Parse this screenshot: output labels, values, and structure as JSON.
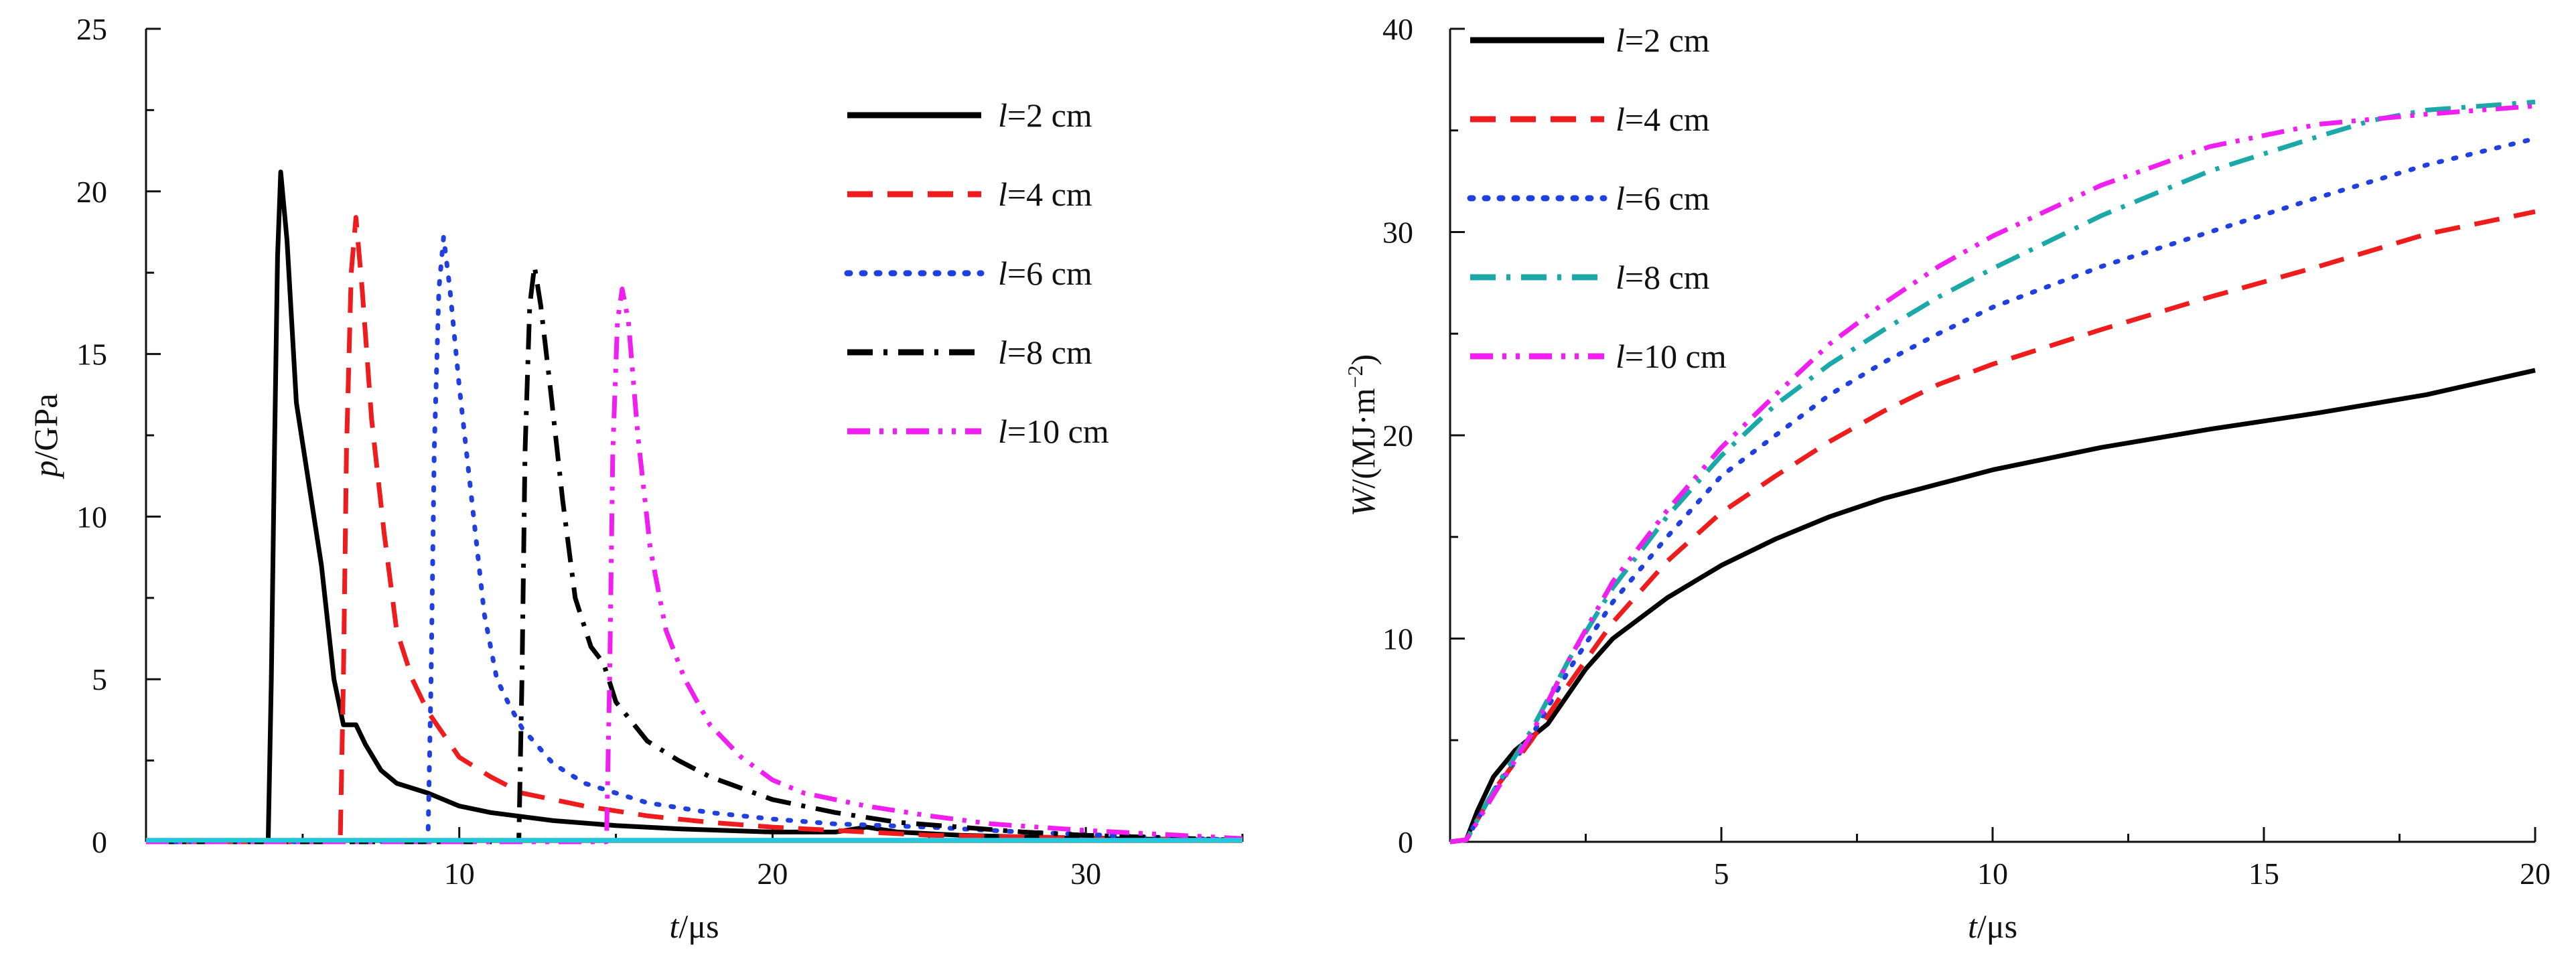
{
  "chart_data": [
    {
      "type": "line",
      "xlabel": {
        "var": "t",
        "unit": "/μs"
      },
      "ylabel": {
        "var": "p",
        "unit": "/GPa"
      },
      "xlim": [
        0,
        35
      ],
      "ylim": [
        0,
        25
      ],
      "x_ticks": [
        "10",
        "20",
        "30"
      ],
      "y_ticks": [
        "0",
        "5",
        "10",
        "15",
        "20",
        "25"
      ],
      "legend_position": "top-right",
      "series": [
        {
          "name": "l=2 cm",
          "label_var": "l",
          "label_rest": "=2 cm",
          "color": "#000000",
          "dash": "solid",
          "points": [
            [
              0,
              0
            ],
            [
              3.9,
              0
            ],
            [
              4.0,
              5
            ],
            [
              4.1,
              12
            ],
            [
              4.2,
              18
            ],
            [
              4.3,
              20.6
            ],
            [
              4.5,
              18.5
            ],
            [
              4.8,
              13.5
            ],
            [
              5.2,
              11
            ],
            [
              5.6,
              8.5
            ],
            [
              6.0,
              5
            ],
            [
              6.3,
              3.6
            ],
            [
              6.7,
              3.6
            ],
            [
              7.0,
              3.0
            ],
            [
              7.5,
              2.2
            ],
            [
              8.0,
              1.8
            ],
            [
              9.0,
              1.5
            ],
            [
              10,
              1.1
            ],
            [
              11,
              0.9
            ],
            [
              13,
              0.65
            ],
            [
              15,
              0.5
            ],
            [
              17,
              0.4
            ],
            [
              20,
              0.3
            ],
            [
              22,
              0.3
            ],
            [
              23,
              0.45
            ],
            [
              24,
              0.3
            ],
            [
              26,
              0.2
            ],
            [
              30,
              0.1
            ],
            [
              35,
              0.05
            ]
          ]
        },
        {
          "name": "l=4 cm",
          "label_var": "l",
          "label_rest": "=4 cm",
          "color": "#ee1c1c",
          "dash": "long",
          "points": [
            [
              0,
              0
            ],
            [
              6.2,
              0
            ],
            [
              6.3,
              5
            ],
            [
              6.4,
              12
            ],
            [
              6.55,
              17.5
            ],
            [
              6.7,
              19.2
            ],
            [
              6.9,
              17
            ],
            [
              7.2,
              13
            ],
            [
              7.6,
              9.5
            ],
            [
              8.0,
              6.5
            ],
            [
              8.5,
              5
            ],
            [
              9.0,
              4
            ],
            [
              9.5,
              3.3
            ],
            [
              10,
              2.6
            ],
            [
              11,
              2.0
            ],
            [
              12,
              1.5
            ],
            [
              14,
              1.1
            ],
            [
              16,
              0.8
            ],
            [
              18,
              0.6
            ],
            [
              20,
              0.45
            ],
            [
              22,
              0.35
            ],
            [
              25,
              0.2
            ],
            [
              28,
              0.15
            ],
            [
              35,
              0.05
            ]
          ]
        },
        {
          "name": "l=6 cm",
          "label_var": "l",
          "label_rest": "=6 cm",
          "color": "#1f3fe0",
          "dash": "dot",
          "points": [
            [
              0,
              0
            ],
            [
              9.0,
              0
            ],
            [
              9.1,
              5
            ],
            [
              9.2,
              12
            ],
            [
              9.35,
              17
            ],
            [
              9.5,
              18.6
            ],
            [
              9.7,
              17
            ],
            [
              10,
              14
            ],
            [
              10.4,
              10.5
            ],
            [
              10.8,
              7
            ],
            [
              11.2,
              5
            ],
            [
              11.6,
              4.2
            ],
            [
              12,
              3.5
            ],
            [
              13,
              2.4
            ],
            [
              14,
              1.8
            ],
            [
              16,
              1.2
            ],
            [
              18,
              0.9
            ],
            [
              20,
              0.7
            ],
            [
              22,
              0.55
            ],
            [
              25,
              0.45
            ],
            [
              28,
              0.3
            ],
            [
              32,
              0.15
            ],
            [
              35,
              0.05
            ]
          ]
        },
        {
          "name": "l=8 cm",
          "label_var": "l",
          "label_rest": "=8 cm",
          "color": "#000000",
          "dash": "dashdot",
          "points": [
            [
              0,
              0
            ],
            [
              11.9,
              0
            ],
            [
              12.0,
              5
            ],
            [
              12.1,
              12
            ],
            [
              12.25,
              16.5
            ],
            [
              12.4,
              17.7
            ],
            [
              12.6,
              16.5
            ],
            [
              12.9,
              14
            ],
            [
              13.3,
              10.5
            ],
            [
              13.7,
              7.5
            ],
            [
              14.2,
              6
            ],
            [
              14.6,
              5.5
            ],
            [
              15.0,
              4.3
            ],
            [
              16,
              3.1
            ],
            [
              17,
              2.5
            ],
            [
              18,
              2.0
            ],
            [
              20,
              1.3
            ],
            [
              22,
              0.9
            ],
            [
              24,
              0.6
            ],
            [
              26,
              0.45
            ],
            [
              28,
              0.3
            ],
            [
              30,
              0.2
            ],
            [
              35,
              0.05
            ]
          ]
        },
        {
          "name": "l=10 cm",
          "label_var": "l",
          "label_rest": "=10 cm",
          "color": "#f01ef0",
          "dash": "dashdotdot",
          "points": [
            [
              0,
              0
            ],
            [
              14.7,
              0
            ],
            [
              14.8,
              5
            ],
            [
              14.9,
              12
            ],
            [
              15.05,
              16
            ],
            [
              15.2,
              17.0
            ],
            [
              15.4,
              16
            ],
            [
              15.7,
              12.5
            ],
            [
              16.1,
              9
            ],
            [
              16.6,
              6.5
            ],
            [
              17.2,
              5
            ],
            [
              18,
              3.6
            ],
            [
              19,
              2.6
            ],
            [
              20,
              1.9
            ],
            [
              21,
              1.5
            ],
            [
              23,
              1.1
            ],
            [
              25,
              0.8
            ],
            [
              27,
              0.55
            ],
            [
              30,
              0.35
            ],
            [
              33,
              0.2
            ],
            [
              35,
              0.1
            ]
          ]
        },
        {
          "name": "",
          "color": "#22c8dc",
          "dash": "solid",
          "points": [
            [
              0,
              0.05
            ],
            [
              35,
              0.05
            ]
          ]
        }
      ]
    },
    {
      "type": "line",
      "xlabel": {
        "var": "t",
        "unit": "/μs"
      },
      "ylabel": {
        "var": "W",
        "unit": "/(MJ·m",
        "sup": "−2",
        "close": ")"
      },
      "xlim": [
        0,
        20
      ],
      "ylim": [
        0,
        40
      ],
      "x_ticks": [
        "5",
        "10",
        "15",
        "20"
      ],
      "y_ticks": [
        "0",
        "10",
        "20",
        "30",
        "40"
      ],
      "legend_position": "top-left",
      "series": [
        {
          "name": "l=2 cm",
          "label_var": "l",
          "label_rest": "=2 cm",
          "color": "#000000",
          "dash": "solid",
          "points": [
            [
              0,
              0
            ],
            [
              0.3,
              0.1
            ],
            [
              0.5,
              1.5
            ],
            [
              0.8,
              3.2
            ],
            [
              1.2,
              4.5
            ],
            [
              1.8,
              5.8
            ],
            [
              2.5,
              8.5
            ],
            [
              3,
              10
            ],
            [
              4,
              12
            ],
            [
              5,
              13.6
            ],
            [
              6,
              14.9
            ],
            [
              7,
              16
            ],
            [
              8,
              16.9
            ],
            [
              9,
              17.6
            ],
            [
              10,
              18.3
            ],
            [
              12,
              19.4
            ],
            [
              14,
              20.3
            ],
            [
              16,
              21.1
            ],
            [
              18,
              22.0
            ],
            [
              20,
              23.2
            ]
          ]
        },
        {
          "name": "l=4 cm",
          "label_var": "l",
          "label_rest": "=4 cm",
          "color": "#ee1c1c",
          "dash": "long",
          "points": [
            [
              0,
              0
            ],
            [
              0.3,
              0.1
            ],
            [
              0.8,
              2.5
            ],
            [
              1.5,
              5
            ],
            [
              2.2,
              7.8
            ],
            [
              3,
              10.8
            ],
            [
              4,
              13.8
            ],
            [
              5,
              16.2
            ],
            [
              6,
              18
            ],
            [
              7,
              19.7
            ],
            [
              8,
              21.2
            ],
            [
              9,
              22.5
            ],
            [
              10,
              23.5
            ],
            [
              12,
              25.2
            ],
            [
              14,
              26.8
            ],
            [
              16,
              28.3
            ],
            [
              18,
              29.9
            ],
            [
              20,
              31
            ]
          ]
        },
        {
          "name": "l=6 cm",
          "label_var": "l",
          "label_rest": "=6 cm",
          "color": "#1f3fe0",
          "dash": "dot",
          "points": [
            [
              0,
              0
            ],
            [
              0.3,
              0.1
            ],
            [
              0.8,
              2.5
            ],
            [
              1.5,
              5.2
            ],
            [
              2.2,
              8.5
            ],
            [
              3,
              11.8
            ],
            [
              4,
              15
            ],
            [
              5,
              18
            ],
            [
              6,
              20
            ],
            [
              7,
              22
            ],
            [
              8,
              23.6
            ],
            [
              9,
              25
            ],
            [
              10,
              26.3
            ],
            [
              12,
              28.3
            ],
            [
              14,
              30
            ],
            [
              16,
              31.7
            ],
            [
              18,
              33.3
            ],
            [
              20,
              34.6
            ]
          ]
        },
        {
          "name": "l=8 cm",
          "label_var": "l",
          "label_rest": "=8 cm",
          "color": "#1aa8a8",
          "dash": "dashdot",
          "points": [
            [
              0,
              0
            ],
            [
              0.3,
              0.1
            ],
            [
              0.8,
              2.5
            ],
            [
              1.5,
              5.5
            ],
            [
              2.2,
              9
            ],
            [
              3,
              12.5
            ],
            [
              4,
              16
            ],
            [
              5,
              19
            ],
            [
              6,
              21.5
            ],
            [
              7,
              23.5
            ],
            [
              8,
              25.2
            ],
            [
              9,
              26.8
            ],
            [
              10,
              28.2
            ],
            [
              12,
              30.8
            ],
            [
              14,
              33
            ],
            [
              16,
              34.7
            ],
            [
              17,
              35.5
            ],
            [
              18,
              36
            ],
            [
              20,
              36.4
            ]
          ]
        },
        {
          "name": "l=10 cm",
          "label_var": "l",
          "label_rest": "=10 cm",
          "color": "#f01ef0",
          "dash": "dashdotdot",
          "points": [
            [
              0,
              0
            ],
            [
              0.3,
              0.1
            ],
            [
              0.8,
              2.3
            ],
            [
              1.5,
              5.3
            ],
            [
              2.2,
              9
            ],
            [
              3,
              12.8
            ],
            [
              4,
              16.3
            ],
            [
              5,
              19.4
            ],
            [
              6,
              22
            ],
            [
              7,
              24.5
            ],
            [
              8,
              26.5
            ],
            [
              9,
              28.3
            ],
            [
              10,
              29.8
            ],
            [
              12,
              32.3
            ],
            [
              14,
              34.2
            ],
            [
              16,
              35.3
            ],
            [
              18,
              35.8
            ],
            [
              20,
              36.2
            ]
          ]
        }
      ]
    }
  ]
}
